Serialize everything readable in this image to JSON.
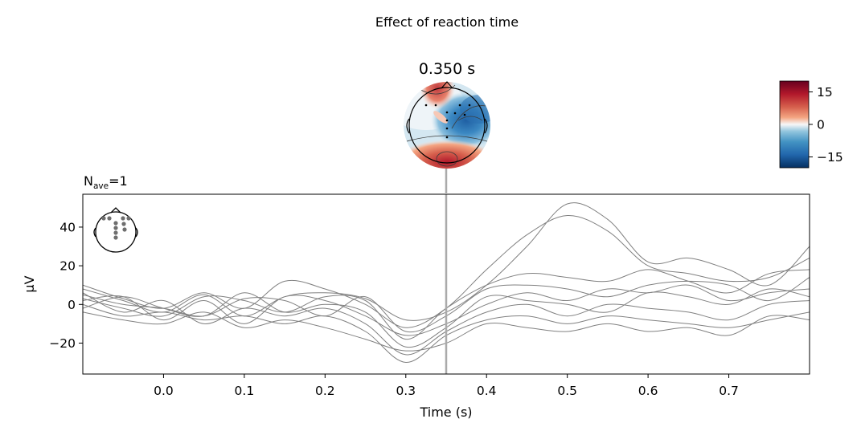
{
  "figure": {
    "suptitle": "Effect of reaction time"
  },
  "topomap": {
    "title": "0.350 s",
    "colorbar": {
      "ticks": [
        15,
        0,
        -15
      ],
      "tick_labels": [
        "15",
        "0",
        "−15"
      ],
      "range": [
        -20,
        20
      ],
      "colormap": "RdBu_r"
    }
  },
  "chart_data": {
    "type": "line",
    "title": "",
    "xlabel": "Time (s)",
    "ylabel": "µV",
    "nave_label": {
      "main": "N",
      "sub": "ave",
      "value": "=1"
    },
    "xlim": [
      -0.1,
      0.8
    ],
    "ylim": [
      -36,
      57
    ],
    "xticks": [
      0.0,
      0.1,
      0.2,
      0.3,
      0.4,
      0.5,
      0.6,
      0.7
    ],
    "xtick_labels": [
      "0.0",
      "0.1",
      "0.2",
      "0.3",
      "0.4",
      "0.5",
      "0.6",
      "0.7"
    ],
    "yticks": [
      40,
      20,
      0,
      -20
    ],
    "ytick_labels": [
      "40",
      "20",
      "0",
      "−20"
    ],
    "vline_time": 0.35,
    "line_color": "#808080",
    "vline_color": "#aaaaaa",
    "x": [
      -0.1,
      -0.05,
      0.0,
      0.05,
      0.1,
      0.15,
      0.2,
      0.25,
      0.3,
      0.35,
      0.4,
      0.45,
      0.5,
      0.55,
      0.6,
      0.65,
      0.7,
      0.75,
      0.8
    ],
    "series": [
      {
        "values": [
          8,
          2,
          -4,
          5,
          -6,
          4,
          6,
          3,
          -8,
          -4,
          10,
          30,
          52,
          44,
          22,
          24,
          18,
          10,
          30
        ]
      },
      {
        "values": [
          10,
          3,
          -2,
          6,
          -2,
          12,
          8,
          0,
          -12,
          -2,
          18,
          36,
          46,
          38,
          20,
          16,
          12,
          14,
          24
        ]
      },
      {
        "values": [
          3,
          -2,
          -6,
          4,
          2,
          -4,
          4,
          2,
          -18,
          -2,
          10,
          16,
          14,
          12,
          18,
          12,
          6,
          16,
          18
        ]
      },
      {
        "values": [
          5,
          0,
          -2,
          -6,
          3,
          2,
          -6,
          4,
          -14,
          -6,
          8,
          10,
          8,
          4,
          10,
          12,
          10,
          2,
          14
        ]
      },
      {
        "values": [
          2,
          4,
          -8,
          2,
          -10,
          4,
          2,
          -6,
          -16,
          -10,
          0,
          6,
          2,
          8,
          6,
          10,
          2,
          6,
          8
        ]
      },
      {
        "values": [
          -2,
          4,
          -2,
          -6,
          6,
          -4,
          0,
          -4,
          -22,
          -12,
          4,
          2,
          0,
          -4,
          6,
          4,
          0,
          8,
          4
        ]
      },
      {
        "values": [
          6,
          -4,
          2,
          -10,
          -2,
          -6,
          -2,
          -10,
          -26,
          -14,
          -4,
          0,
          -6,
          0,
          -2,
          -4,
          -8,
          0,
          2
        ]
      },
      {
        "values": [
          0,
          -6,
          -4,
          -8,
          -6,
          -10,
          -6,
          -14,
          -30,
          -16,
          -8,
          -6,
          -10,
          -6,
          -8,
          -10,
          -12,
          -8,
          -4
        ]
      },
      {
        "values": [
          -4,
          -8,
          -10,
          -4,
          -12,
          -8,
          -12,
          -18,
          -24,
          -20,
          -10,
          -12,
          -14,
          -10,
          -14,
          -12,
          -16,
          -6,
          -8
        ]
      }
    ]
  }
}
